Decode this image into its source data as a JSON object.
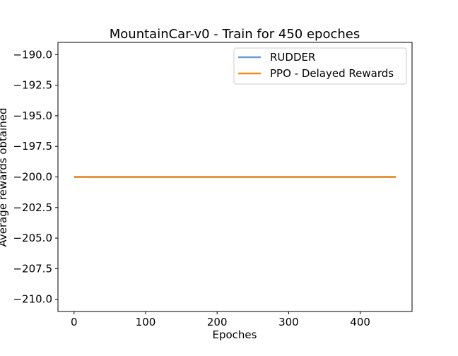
{
  "chart_data": {
    "type": "line",
    "title": "MountainCar-v0 - Train for 450 epoches",
    "xlabel": "Epoches",
    "ylabel": "Average rewards obtained",
    "xlim": [
      -22.5,
      472.5
    ],
    "ylim": [
      -211.0,
      -189.0
    ],
    "xticks": [
      0,
      100,
      200,
      300,
      400
    ],
    "xtick_labels": [
      "0",
      "100",
      "200",
      "300",
      "400"
    ],
    "yticks": [
      -190.0,
      -192.5,
      -195.0,
      -197.5,
      -200.0,
      -202.5,
      -205.0,
      -207.5,
      -210.0
    ],
    "ytick_labels": [
      "−190.0",
      "−192.5",
      "−195.0",
      "−197.5",
      "−200.0",
      "−202.5",
      "−205.0",
      "−207.5",
      "−210.0"
    ],
    "grid": false,
    "legend_position": "top-right",
    "series": [
      {
        "name": "RUDDER",
        "color": "#6a9bd1",
        "x": [
          0,
          450
        ],
        "y": [
          -200.0,
          -200.0
        ]
      },
      {
        "name": "PPO - Delayed Rewards",
        "color": "#f28a1e",
        "x": [
          0,
          450
        ],
        "y": [
          -200.0,
          -200.0
        ]
      }
    ]
  }
}
